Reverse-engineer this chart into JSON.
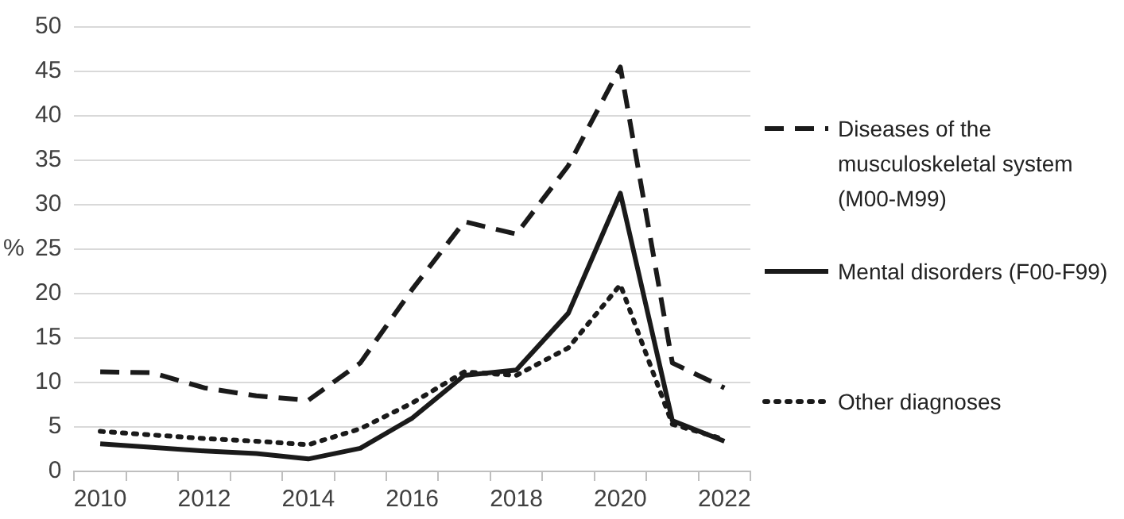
{
  "chart_data": {
    "type": "line",
    "ylabel": "%",
    "categories": [
      "2010",
      null,
      "2012",
      null,
      "2014",
      null,
      "2016",
      null,
      "2018",
      null,
      "2020",
      null,
      "2022"
    ],
    "ylim": [
      0,
      50
    ],
    "yticks": [
      0,
      5,
      10,
      15,
      20,
      25,
      30,
      35,
      40,
      45,
      50
    ],
    "grid": "y",
    "legend": "right",
    "marker": "none",
    "series": [
      {
        "name": "Diseases of the musculoskeletal system (M00-M99)",
        "color": "#1a1a1a",
        "line_style": "dashed",
        "values": [
          11.2,
          11.1,
          9.4,
          8.5,
          8,
          12.2,
          20.5,
          28.1,
          26.7,
          34.4,
          45.5,
          12.2,
          9.4
        ]
      },
      {
        "name": "Mental disorders (F00-F99)",
        "color": "#1a1a1a",
        "line_style": "solid",
        "values": [
          3.1,
          2.7,
          2.3,
          2,
          1.4,
          2.6,
          6,
          10.8,
          11.4,
          17.8,
          31.3,
          5.7,
          3.4
        ]
      },
      {
        "name": "Other diagnoses",
        "color": "#1a1a1a",
        "line_style": "dotted",
        "values": [
          4.5,
          4.1,
          3.7,
          3.4,
          3,
          4.8,
          7.7,
          11.2,
          10.8,
          13.9,
          21,
          5.3,
          3.6
        ]
      }
    ]
  }
}
